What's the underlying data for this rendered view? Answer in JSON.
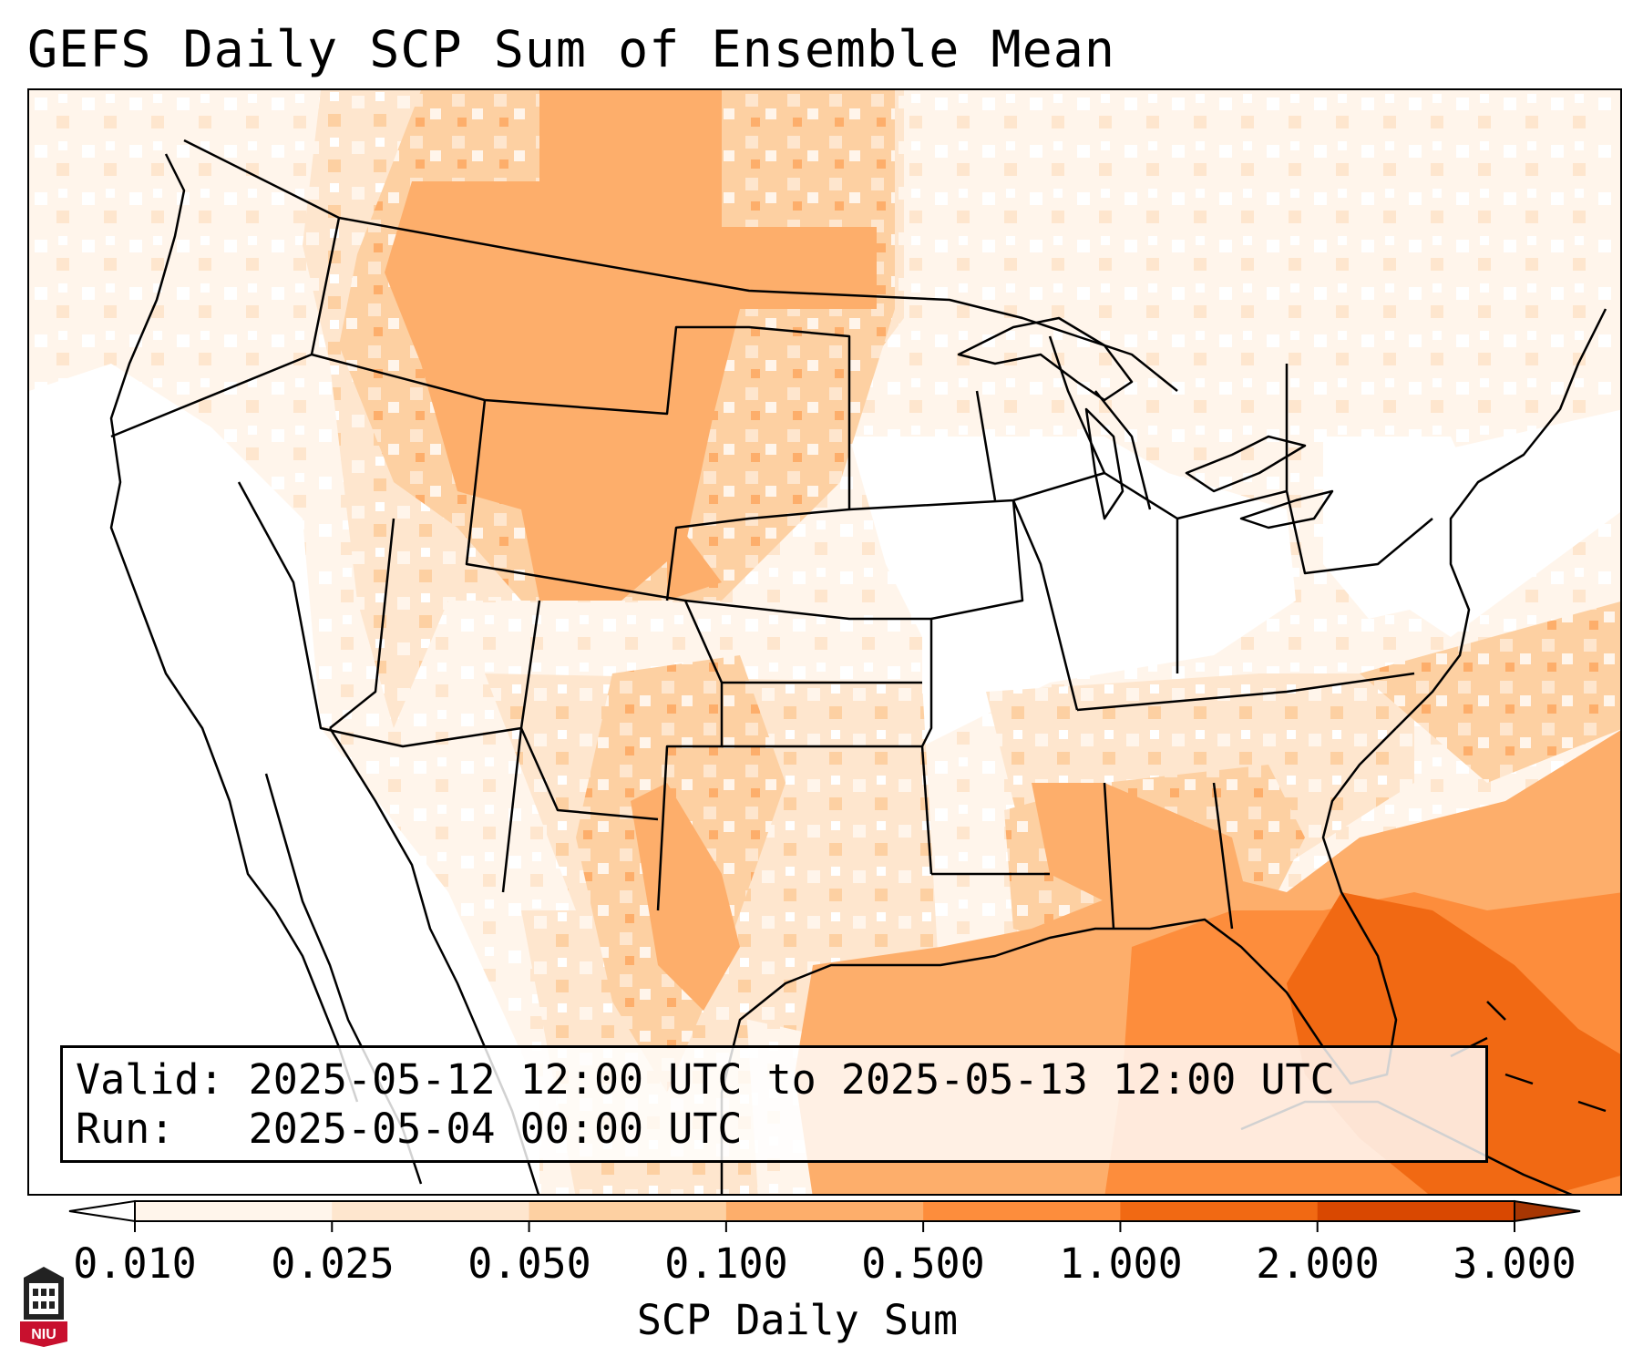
{
  "title": "GEFS Daily SCP Sum of Ensemble Mean",
  "info": {
    "valid_label": "Valid:",
    "valid_value": "2025-05-12 12:00 UTC to 2025-05-13 12:00 UTC",
    "run_label": "Run:",
    "run_value": "2025-05-04 00:00 UTC"
  },
  "colorbar": {
    "label": "SCP Daily Sum",
    "ticks": [
      "0.010",
      "0.025",
      "0.050",
      "0.100",
      "0.500",
      "1.000",
      "2.000",
      "3.000"
    ],
    "colors": [
      "#fff5eb",
      "#fee6ce",
      "#fdd0a2",
      "#fdae6b",
      "#fd8d3c",
      "#f16913",
      "#d94801"
    ],
    "extend": "both"
  },
  "logo": {
    "text": "NIU",
    "color": "#c8102e"
  },
  "map": {
    "projection": "Lambert conformal conic",
    "region": "Contiguous United States, southern Canada, northern Mexico, Gulf of Mexico",
    "fill_levels": [
      "white",
      "0.010-0.025",
      "0.025-0.050",
      "0.050-0.100",
      "0.100-0.500",
      "0.500-1.000",
      "1.000-2.000"
    ],
    "highest_values_area": "Atlantic east of Florida and Bahamas"
  }
}
